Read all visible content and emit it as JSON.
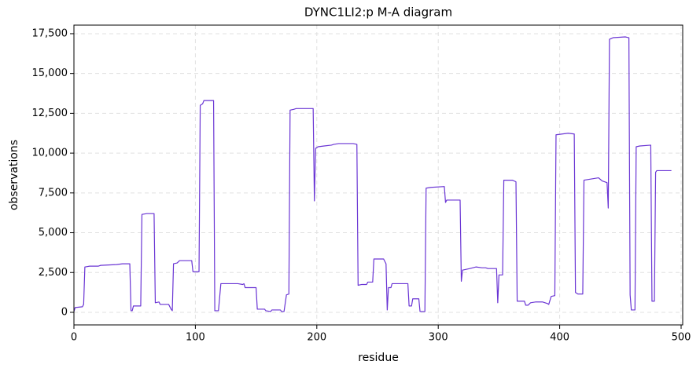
{
  "chart_data": {
    "type": "line",
    "title": "DYNC1LI2:p M-A diagram",
    "x_label": "residue",
    "y_label": "observations",
    "x": [
      0,
      1,
      7,
      8,
      9,
      13,
      20,
      22,
      35,
      40,
      46,
      47,
      48,
      49,
      55,
      56,
      60,
      66,
      67,
      70,
      71,
      78,
      80,
      81,
      82,
      85,
      87,
      97,
      98,
      103,
      104,
      106,
      107,
      115,
      116,
      119,
      121,
      135,
      139,
      140,
      141,
      150,
      151,
      157,
      158,
      162,
      163,
      170,
      171,
      173,
      175,
      177,
      178,
      181,
      183,
      197,
      198,
      199,
      201,
      206,
      212,
      214,
      218,
      230,
      233,
      234,
      237,
      241,
      242,
      246,
      247,
      255,
      257,
      258,
      259,
      261,
      262,
      275,
      276,
      278,
      279,
      284,
      285,
      289,
      290,
      294,
      305,
      306,
      307,
      318,
      319,
      320,
      326,
      331,
      336,
      339,
      341,
      348,
      349,
      350,
      353,
      354,
      361,
      364,
      365,
      371,
      372,
      374,
      376,
      380,
      386,
      390,
      391,
      393,
      396,
      397,
      402,
      407,
      412,
      413,
      415,
      419,
      420,
      428,
      432,
      435,
      439,
      440,
      441,
      444,
      454,
      457,
      458,
      459,
      462,
      463,
      466,
      475,
      476,
      478,
      479,
      480,
      492
    ],
    "series": [
      {
        "name": "observations",
        "color": "#6a35d4",
        "values": [
          50,
          300,
          350,
          500,
          2850,
          2900,
          2900,
          2950,
          3000,
          3050,
          3050,
          100,
          100,
          400,
          400,
          6150,
          6200,
          6200,
          600,
          650,
          500,
          500,
          200,
          100,
          3050,
          3100,
          3250,
          3250,
          2550,
          2550,
          13000,
          13100,
          13300,
          13300,
          100,
          100,
          1800,
          1800,
          1750,
          1800,
          1550,
          1550,
          200,
          200,
          100,
          50,
          150,
          150,
          50,
          50,
          1100,
          1150,
          12700,
          12750,
          12800,
          12800,
          7000,
          10300,
          10400,
          10450,
          10500,
          10550,
          10600,
          10600,
          10550,
          1700,
          1750,
          1750,
          1900,
          1900,
          3350,
          3350,
          3050,
          150,
          1550,
          1550,
          1800,
          1800,
          400,
          400,
          850,
          850,
          50,
          50,
          7800,
          7850,
          7900,
          6900,
          7050,
          7050,
          1950,
          2650,
          2750,
          2850,
          2800,
          2800,
          2750,
          2750,
          600,
          2350,
          2350,
          8300,
          8300,
          8200,
          700,
          700,
          450,
          450,
          600,
          650,
          650,
          550,
          500,
          1000,
          1050,
          11150,
          11200,
          11250,
          11200,
          1250,
          1150,
          1150,
          8300,
          8400,
          8450,
          8250,
          8150,
          6550,
          17150,
          17250,
          17300,
          17250,
          1100,
          150,
          150,
          10400,
          10450,
          10500,
          700,
          700,
          8800,
          8900,
          8900
        ]
      }
    ],
    "xlim": [
      0,
      501.3
    ],
    "ylim": [
      -790,
      18040
    ],
    "xticks": [
      0,
      100,
      200,
      300,
      400,
      500
    ],
    "yticks": [
      0,
      {
        "value": 2500,
        "label": "2,500"
      },
      {
        "value": 5000,
        "label": "5,000"
      },
      {
        "value": 7500,
        "label": "7,500"
      },
      {
        "value": 10000,
        "label": "10,000"
      },
      {
        "value": 12500,
        "label": "12,500"
      },
      {
        "value": 15000,
        "label": "15,000"
      },
      {
        "value": 17500,
        "label": "17,500"
      }
    ],
    "grid": true
  }
}
